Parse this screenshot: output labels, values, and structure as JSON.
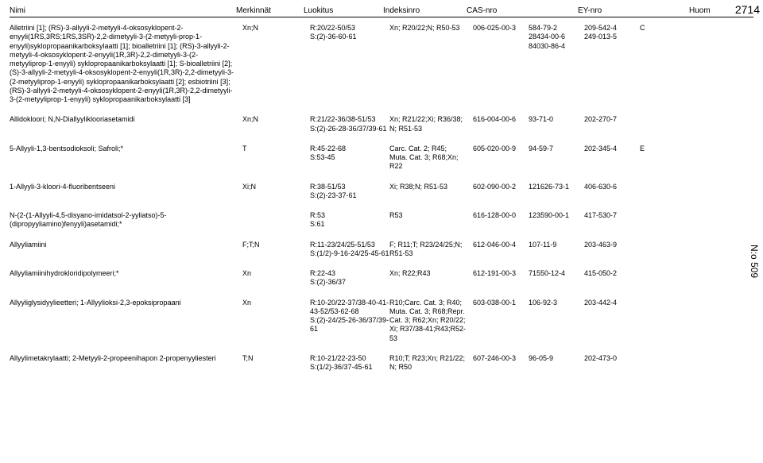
{
  "header": {
    "nimi": "Nimi",
    "merk": "Merkinnät",
    "luok": "Luokitus",
    "ind": "Indeksinro",
    "cas": "CAS-nro",
    "ey": "EY-nro",
    "huom": "Huom"
  },
  "side_top": "2714",
  "side_bot": "N:o 509",
  "rows": [
    {
      "name": "Alletriini [1]; (RS)-3-allyyli-2-metyyli-4-oksosyklopent-2-enyyli(1RS,3RS;1RS,3SR)-2,2-dimetyyli-3-(2-metyyli-prop-1-enyyli)syklopropaanikarboksylaatti [1]; bioalletriini [1]; (RS)-3-allyyli-2-metyyli-4-oksosyklopent-2-enyyli(1R,3R)-2,2-dimetyyli-3-(2-metyyliprop-1-enyyli) syklopropaanikarboksylaatti [1]; S-bioalletriini [2];(S)-3-allyyli-2-metyyli-4-oksosyklopent-2-enyyli(1R,3R)-2,2-dimetyyli-3-(2-metyyliprop-1-enyyli) syklopropaanikarboksylaatti [2]; esbiotriini [3];(RS)-3-allyyli-2-metyyli-4-oksosyklopent-2-enyyli(1R,3R)-2,2-dimetyyli-3-(2-metyyliprop-1-enyyli) syklopropaanikarboksylaatti [3]",
      "merk": "Xn;N",
      "luok": "R:20/22-50/53\nS:(2)-36-60-61",
      "ind": "Xn; R20/22;N; R50-53",
      "cas": "006-025-00-3",
      "ey1": "584-79-2\n28434-00-6\n84030-86-4",
      "ey2": "209-542-4\n249-013-5",
      "huom": "C"
    },
    {
      "name": "Allidokloori; N,N-Diallyyliklooriasetamidi",
      "merk": "Xn;N",
      "luok": "R:21/22-36/38-51/53\nS:(2)-26-28-36/37/39-61",
      "ind": "Xn; R21/22;Xi; R36/38;\nN; R51-53",
      "cas": "616-004-00-6",
      "ey1": "93-71-0",
      "ey2": "202-270-7",
      "huom": ""
    },
    {
      "name": "5-Allyyli-1,3-bentsodioksoli; Safroli;*",
      "merk": "T",
      "luok": "R:45-22-68\nS:53-45",
      "ind": "Carc. Cat. 2; R45;\nMuta. Cat. 3; R68;Xn;\nR22",
      "cas": "605-020-00-9",
      "ey1": "94-59-7",
      "ey2": "202-345-4",
      "huom": "E"
    },
    {
      "name": "1-Allyyli-3-kloori-4-fluoribentseeni",
      "merk": "Xi;N",
      "luok": "R:38-51/53\nS:(2)-23-37-61",
      "ind": "Xi; R38;N; R51-53",
      "cas": "602-090-00-2",
      "ey1": "121626-73-1",
      "ey2": "406-630-6",
      "huom": ""
    },
    {
      "name": "N-(2-(1-Allyyli-4,5-disyano-imidatsol-2-yyliatso)-5-(dipropyyliamino)fenyyli)asetamidi;*",
      "merk": "",
      "luok": "R:53\nS:61",
      "ind": "R53",
      "cas": "616-128-00-0",
      "ey1": "123590-00-1",
      "ey2": "417-530-7",
      "huom": ""
    },
    {
      "name": "Allyyliamiini",
      "merk": "F;T;N",
      "luok": "R:11-23/24/25-51/53\nS:(1/2)-9-16-24/25-45-61",
      "ind": "F; R11;T; R23/24/25;N;\nR51-53",
      "cas": "612-046-00-4",
      "ey1": "107-11-9",
      "ey2": "203-463-9",
      "huom": ""
    },
    {
      "name": "Allyyliamiinihydrokloridipolymeeri;*",
      "merk": "Xn",
      "luok": "R:22-43\nS:(2)-36/37",
      "ind": "Xn; R22;R43",
      "cas": "612-191-00-3",
      "ey1": "71550-12-4",
      "ey2": "415-050-2",
      "huom": ""
    },
    {
      "name": "Allyyliglysidyylieetteri; 1-Allyylioksi-2,3-epoksipropaani",
      "merk": "Xn",
      "luok": "R:10-20/22-37/38-40-41-43-52/53-62-68\nS:(2)-24/25-26-36/37/39-61",
      "ind": "R10;Carc. Cat. 3; R40;\nMuta. Cat. 3; R68;Repr.\nCat. 3; R62;Xn; R20/22;\nXi; R37/38-41;R43;R52-53",
      "cas": "603-038-00-1",
      "ey1": "106-92-3",
      "ey2": "203-442-4",
      "huom": ""
    },
    {
      "name": "Allyylimetakrylaatti; 2-Metyyli-2-propeenihapon 2-propenyyliesteri",
      "merk": "T;N",
      "luok": "R:10-21/22-23-50\nS:(1/2)-36/37-45-61",
      "ind": "R10;T; R23;Xn; R21/22;\nN; R50",
      "cas": "607-246-00-3",
      "ey1": "96-05-9",
      "ey2": "202-473-0",
      "huom": ""
    }
  ]
}
